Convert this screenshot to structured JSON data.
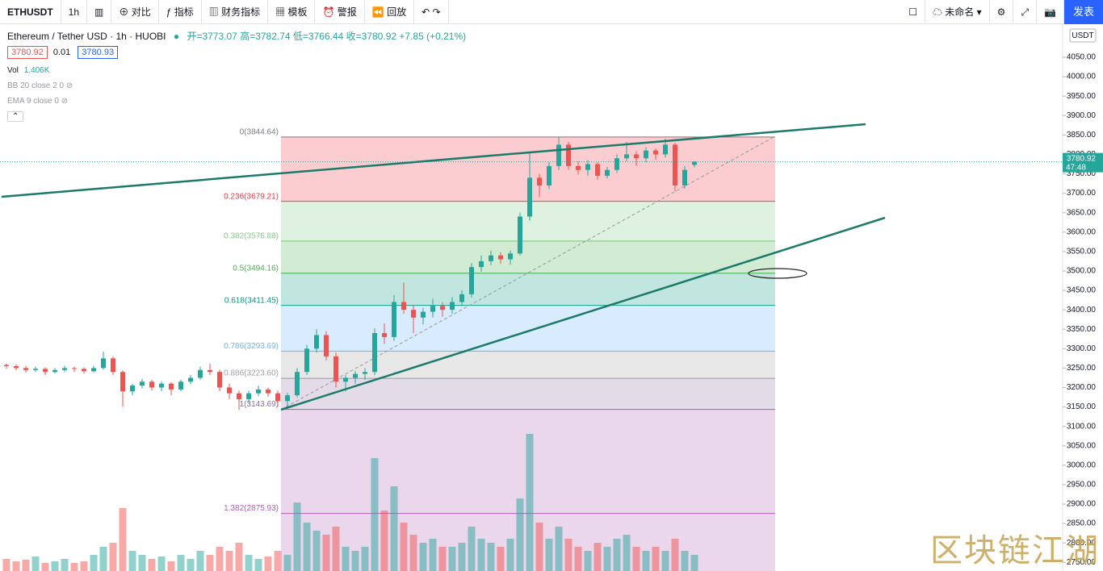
{
  "toolbar": {
    "symbol": "ETHUSDT",
    "interval": "1h",
    "compare": "对比",
    "indicators": "指标",
    "financials": "财务指标",
    "templates": "模板",
    "alert": "警报",
    "replay": "回放",
    "layout_name": "未命名",
    "publish": "发表"
  },
  "legend": {
    "title": "Ethereum / Tether USD · 1h · HUOBI",
    "open": "开=3773.07",
    "high": "高=3782.74",
    "low": "低=3766.44",
    "close": "收=3780.92",
    "change": "+7.85 (+0.21%)",
    "bid": "3780.92",
    "spread": "0.01",
    "ask": "3780.93",
    "vol": "Vol",
    "vol_value": "1.406K",
    "bb": "BB 20 close 2 0",
    "ema": "EMA 9 close 0"
  },
  "watermark": "区块链江湖",
  "chart_data": {
    "type": "candlestick",
    "currency": "USDT",
    "countdown": "47:48",
    "ylim": [
      2727.7,
      4135.1
    ],
    "yticks": [
      {
        "value": 2750,
        "label": "2750.00"
      },
      {
        "value": 2800,
        "label": "2800.00"
      },
      {
        "value": 2850,
        "label": "2850.00"
      },
      {
        "value": 2900,
        "label": "2900.00"
      },
      {
        "value": 2950,
        "label": "2950.00"
      },
      {
        "value": 3000,
        "label": "3000.00"
      },
      {
        "value": 3050,
        "label": "3050.00"
      },
      {
        "value": 3100,
        "label": "3100.00"
      },
      {
        "value": 3150,
        "label": "3150.00"
      },
      {
        "value": 3200,
        "label": "3200.00"
      },
      {
        "value": 3250,
        "label": "3250.00"
      },
      {
        "value": 3300,
        "label": "3300.00"
      },
      {
        "value": 3350,
        "label": "3350.00"
      },
      {
        "value": 3400,
        "label": "3400.00"
      },
      {
        "value": 3450,
        "label": "3450.00"
      },
      {
        "value": 3500,
        "label": "3500.00"
      },
      {
        "value": 3550,
        "label": "3550.00"
      },
      {
        "value": 3600,
        "label": "3600.00"
      },
      {
        "value": 3650,
        "label": "3650.00"
      },
      {
        "value": 3700,
        "label": "3700.00"
      },
      {
        "value": 3750,
        "label": "3750.00"
      },
      {
        "value": 3800,
        "label": "3800.00"
      },
      {
        "value": 3850,
        "label": "3850.00"
      },
      {
        "value": 3900,
        "label": "3900.00"
      },
      {
        "value": 3950,
        "label": "3950.00"
      },
      {
        "value": 4000,
        "label": "4000.00"
      },
      {
        "value": 4050,
        "label": "4050.00"
      }
    ],
    "up_color": "#26a69a",
    "down_color": "#ef5350",
    "candles": [
      [
        3258,
        3262,
        3248,
        3255
      ],
      [
        3255,
        3260,
        3244,
        3250
      ],
      [
        3250,
        3256,
        3238,
        3245
      ],
      [
        3245,
        3254,
        3240,
        3248
      ],
      [
        3248,
        3252,
        3232,
        3240
      ],
      [
        3240,
        3250,
        3236,
        3245
      ],
      [
        3245,
        3256,
        3240,
        3250
      ],
      [
        3250,
        3254,
        3240,
        3248
      ],
      [
        3248,
        3252,
        3236,
        3242
      ],
      [
        3242,
        3256,
        3238,
        3250
      ],
      [
        3250,
        3292,
        3246,
        3275
      ],
      [
        3275,
        3280,
        3232,
        3240
      ],
      [
        3240,
        3244,
        3150,
        3190
      ],
      [
        3190,
        3210,
        3180,
        3205
      ],
      [
        3205,
        3222,
        3198,
        3215
      ],
      [
        3215,
        3220,
        3192,
        3200
      ],
      [
        3200,
        3216,
        3190,
        3210
      ],
      [
        3210,
        3214,
        3180,
        3195
      ],
      [
        3195,
        3220,
        3190,
        3215
      ],
      [
        3215,
        3232,
        3208,
        3225
      ],
      [
        3225,
        3254,
        3220,
        3245
      ],
      [
        3245,
        3262,
        3232,
        3240
      ],
      [
        3240,
        3246,
        3190,
        3200
      ],
      [
        3200,
        3210,
        3170,
        3185
      ],
      [
        3185,
        3192,
        3142,
        3170
      ],
      [
        3170,
        3192,
        3160,
        3185
      ],
      [
        3185,
        3205,
        3178,
        3195
      ],
      [
        3195,
        3200,
        3176,
        3185
      ],
      [
        3185,
        3192,
        3150,
        3165
      ],
      [
        3165,
        3186,
        3148,
        3180
      ],
      [
        3180,
        3250,
        3175,
        3240
      ],
      [
        3240,
        3310,
        3232,
        3300
      ],
      [
        3300,
        3350,
        3290,
        3335
      ],
      [
        3335,
        3345,
        3270,
        3280
      ],
      [
        3280,
        3290,
        3200,
        3215
      ],
      [
        3215,
        3232,
        3190,
        3225
      ],
      [
        3225,
        3242,
        3210,
        3235
      ],
      [
        3235,
        3250,
        3220,
        3240
      ],
      [
        3240,
        3352,
        3232,
        3340
      ],
      [
        3340,
        3365,
        3312,
        3330
      ],
      [
        3330,
        3438,
        3320,
        3420
      ],
      [
        3420,
        3470,
        3390,
        3400
      ],
      [
        3400,
        3412,
        3340,
        3380
      ],
      [
        3380,
        3405,
        3362,
        3395
      ],
      [
        3395,
        3428,
        3380,
        3410
      ],
      [
        3410,
        3420,
        3382,
        3400
      ],
      [
        3400,
        3432,
        3390,
        3420
      ],
      [
        3420,
        3450,
        3410,
        3440
      ],
      [
        3440,
        3520,
        3432,
        3510
      ],
      [
        3510,
        3540,
        3498,
        3525
      ],
      [
        3525,
        3552,
        3515,
        3540
      ],
      [
        3540,
        3548,
        3518,
        3530
      ],
      [
        3530,
        3552,
        3516,
        3545
      ],
      [
        3545,
        3650,
        3540,
        3640
      ],
      [
        3640,
        3805,
        3630,
        3740
      ],
      [
        3740,
        3750,
        3690,
        3720
      ],
      [
        3720,
        3780,
        3710,
        3770
      ],
      [
        3770,
        3845,
        3760,
        3825
      ],
      [
        3825,
        3832,
        3760,
        3770
      ],
      [
        3770,
        3782,
        3748,
        3760
      ],
      [
        3760,
        3785,
        3745,
        3775
      ],
      [
        3775,
        3780,
        3735,
        3745
      ],
      [
        3745,
        3768,
        3738,
        3760
      ],
      [
        3760,
        3800,
        3752,
        3790
      ],
      [
        3790,
        3832,
        3782,
        3800
      ],
      [
        3800,
        3808,
        3770,
        3790
      ],
      [
        3790,
        3818,
        3780,
        3810
      ],
      [
        3810,
        3815,
        3786,
        3800
      ],
      [
        3800,
        3840,
        3792,
        3825
      ],
      [
        3825,
        3830,
        3705,
        3720
      ],
      [
        3720,
        3770,
        3712,
        3760
      ],
      [
        3773.07,
        3782.74,
        3766.44,
        3780.92
      ]
    ],
    "volumes": [
      0.15,
      0.12,
      0.14,
      0.18,
      0.1,
      0.12,
      0.15,
      0.1,
      0.12,
      0.2,
      0.3,
      0.35,
      0.78,
      0.25,
      0.2,
      0.15,
      0.18,
      0.12,
      0.2,
      0.15,
      0.25,
      0.2,
      0.3,
      0.25,
      0.35,
      0.2,
      0.15,
      0.18,
      0.25,
      0.2,
      0.85,
      0.6,
      0.5,
      0.45,
      0.55,
      0.3,
      0.25,
      0.3,
      1.4,
      0.75,
      1.05,
      0.6,
      0.45,
      0.35,
      0.4,
      0.3,
      0.3,
      0.35,
      0.55,
      0.4,
      0.35,
      0.3,
      0.4,
      0.9,
      1.7,
      0.6,
      0.4,
      0.55,
      0.4,
      0.3,
      0.25,
      0.35,
      0.3,
      0.4,
      0.45,
      0.3,
      0.25,
      0.3,
      0.25,
      0.4,
      0.25,
      0.2
    ],
    "fib_levels": [
      {
        "label": "0(3844.64)",
        "value": 3844.64,
        "color": "#787b86"
      },
      {
        "label": "0.236(3679.21)",
        "value": 3679.21,
        "color": "#f23645"
      },
      {
        "label": "0.382(3576.88)",
        "value": 3576.88,
        "color": "#81c784"
      },
      {
        "label": "0.5(3494.16)",
        "value": 3494.16,
        "color": "#4caf50"
      },
      {
        "label": "0.618(3411.45)",
        "value": 3411.45,
        "color": "#089981"
      },
      {
        "label": "0.786(3293.69)",
        "value": 3293.69,
        "color": "#64b5f6"
      },
      {
        "label": "0.886(3223.60)",
        "value": 3223.6,
        "color": "#9e9e9e"
      },
      {
        "label": "1(3143.69)",
        "value": 3143.69,
        "color": "#8e6f9e"
      },
      {
        "label": "1.382(2875.93)",
        "value": 2875.93,
        "color": "#b05fb5"
      }
    ]
  }
}
